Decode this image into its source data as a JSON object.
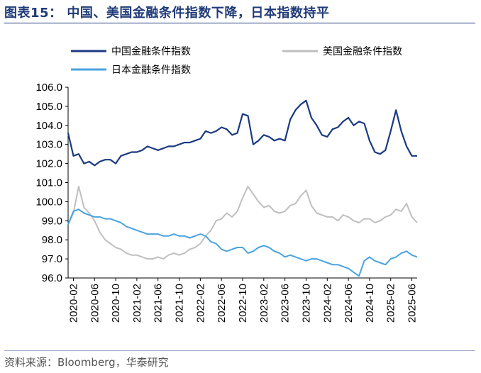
{
  "header": {
    "title": "图表15：  中国、美国金融条件指数下降，日本指数持平"
  },
  "footer": {
    "source": "资料来源：Bloomberg，华泰研究"
  },
  "colors": {
    "china": "#1b3a80",
    "us": "#bfbfbf",
    "japan": "#4aa3e0",
    "title": "#1f3a78"
  },
  "chart_data": {
    "type": "line",
    "title": "",
    "xlabel": "",
    "ylabel": "",
    "ylim": [
      96.0,
      106.0
    ],
    "yticks": [
      "106.0",
      "105.0",
      "104.0",
      "103.0",
      "102.0",
      "101.0",
      "100.0",
      "99.0",
      "98.0",
      "97.0",
      "96.0"
    ],
    "xticks": [
      "2020-02",
      "2020-06",
      "2020-10",
      "2021-02",
      "2021-06",
      "2021-10",
      "2022-02",
      "2022-06",
      "2022-10",
      "2023-02",
      "2023-06",
      "2023-10",
      "2024-02",
      "2024-06",
      "2024-10",
      "2025-02",
      "2025-06"
    ],
    "legend_position": "top",
    "grid": false,
    "series": [
      {
        "name": "中国金融条件指数",
        "color": "#1b3a80",
        "x": [
          "2020-01",
          "2020-02",
          "2020-03",
          "2020-04",
          "2020-05",
          "2020-06",
          "2020-07",
          "2020-08",
          "2020-09",
          "2020-10",
          "2020-11",
          "2020-12",
          "2021-01",
          "2021-02",
          "2021-03",
          "2021-04",
          "2021-05",
          "2021-06",
          "2021-07",
          "2021-08",
          "2021-09",
          "2021-10",
          "2021-11",
          "2021-12",
          "2022-01",
          "2022-02",
          "2022-03",
          "2022-04",
          "2022-05",
          "2022-06",
          "2022-07",
          "2022-08",
          "2022-09",
          "2022-10",
          "2022-11",
          "2022-12",
          "2023-01",
          "2023-02",
          "2023-03",
          "2023-04",
          "2023-05",
          "2023-06",
          "2023-07",
          "2023-08",
          "2023-09",
          "2023-10",
          "2023-11",
          "2023-12",
          "2024-01",
          "2024-02",
          "2024-03",
          "2024-04",
          "2024-05",
          "2024-06",
          "2024-07",
          "2024-08",
          "2024-09",
          "2024-10",
          "2024-11",
          "2024-12",
          "2025-01",
          "2025-02",
          "2025-03",
          "2025-04",
          "2025-05",
          "2025-06",
          "2025-07"
        ],
        "values": [
          103.6,
          102.4,
          102.5,
          102.0,
          102.1,
          101.9,
          102.1,
          102.2,
          102.2,
          102.0,
          102.4,
          102.5,
          102.6,
          102.6,
          102.7,
          102.9,
          102.8,
          102.7,
          102.8,
          102.9,
          102.9,
          103.0,
          103.1,
          103.1,
          103.2,
          103.3,
          103.7,
          103.6,
          103.7,
          103.9,
          103.8,
          103.5,
          103.6,
          104.6,
          104.5,
          103.0,
          103.2,
          103.5,
          103.4,
          103.2,
          103.3,
          103.2,
          104.3,
          104.8,
          105.1,
          105.3,
          104.4,
          104.0,
          103.5,
          103.4,
          103.8,
          103.9,
          104.2,
          104.4,
          104.0,
          104.2,
          104.1,
          103.2,
          102.6,
          102.5,
          102.7,
          103.7,
          104.8,
          103.7,
          102.9,
          102.4,
          102.4
        ]
      },
      {
        "name": "美国金融条件指数",
        "color": "#bfbfbf",
        "x": [
          "2020-01",
          "2020-02",
          "2020-03",
          "2020-04",
          "2020-05",
          "2020-06",
          "2020-07",
          "2020-08",
          "2020-09",
          "2020-10",
          "2020-11",
          "2020-12",
          "2021-01",
          "2021-02",
          "2021-03",
          "2021-04",
          "2021-05",
          "2021-06",
          "2021-07",
          "2021-08",
          "2021-09",
          "2021-10",
          "2021-11",
          "2021-12",
          "2022-01",
          "2022-02",
          "2022-03",
          "2022-04",
          "2022-05",
          "2022-06",
          "2022-07",
          "2022-08",
          "2022-09",
          "2022-10",
          "2022-11",
          "2022-12",
          "2023-01",
          "2023-02",
          "2023-03",
          "2023-04",
          "2023-05",
          "2023-06",
          "2023-07",
          "2023-08",
          "2023-09",
          "2023-10",
          "2023-11",
          "2023-12",
          "2024-01",
          "2024-02",
          "2024-03",
          "2024-04",
          "2024-05",
          "2024-06",
          "2024-07",
          "2024-08",
          "2024-09",
          "2024-10",
          "2024-11",
          "2024-12",
          "2025-01",
          "2025-02",
          "2025-03",
          "2025-04",
          "2025-05",
          "2025-06",
          "2025-07"
        ],
        "values": [
          98.8,
          99.4,
          100.8,
          99.7,
          99.4,
          99.0,
          98.4,
          98.0,
          97.8,
          97.6,
          97.5,
          97.3,
          97.2,
          97.2,
          97.1,
          97.0,
          97.0,
          97.1,
          97.0,
          97.2,
          97.3,
          97.2,
          97.3,
          97.5,
          97.6,
          97.8,
          98.2,
          98.5,
          99.0,
          99.1,
          99.4,
          99.2,
          99.5,
          100.2,
          100.8,
          100.4,
          100.0,
          99.7,
          99.8,
          99.5,
          99.4,
          99.5,
          99.8,
          99.9,
          100.3,
          100.6,
          99.8,
          99.4,
          99.3,
          99.2,
          99.2,
          99.0,
          99.3,
          99.2,
          99.0,
          98.9,
          99.1,
          99.1,
          98.9,
          99.0,
          99.2,
          99.3,
          99.6,
          99.5,
          99.9,
          99.2,
          98.9
        ]
      },
      {
        "name": "日本金融条件指数",
        "color": "#4aa3e0",
        "x": [
          "2020-01",
          "2020-02",
          "2020-03",
          "2020-04",
          "2020-05",
          "2020-06",
          "2020-07",
          "2020-08",
          "2020-09",
          "2020-10",
          "2020-11",
          "2020-12",
          "2021-01",
          "2021-02",
          "2021-03",
          "2021-04",
          "2021-05",
          "2021-06",
          "2021-07",
          "2021-08",
          "2021-09",
          "2021-10",
          "2021-11",
          "2021-12",
          "2022-01",
          "2022-02",
          "2022-03",
          "2022-04",
          "2022-05",
          "2022-06",
          "2022-07",
          "2022-08",
          "2022-09",
          "2022-10",
          "2022-11",
          "2022-12",
          "2023-01",
          "2023-02",
          "2023-03",
          "2023-04",
          "2023-05",
          "2023-06",
          "2023-07",
          "2023-08",
          "2023-09",
          "2023-10",
          "2023-11",
          "2023-12",
          "2024-01",
          "2024-02",
          "2024-03",
          "2024-04",
          "2024-05",
          "2024-06",
          "2024-07",
          "2024-08",
          "2024-09",
          "2024-10",
          "2024-11",
          "2024-12",
          "2025-01",
          "2025-02",
          "2025-03",
          "2025-04",
          "2025-05",
          "2025-06",
          "2025-07"
        ],
        "values": [
          98.8,
          99.5,
          99.6,
          99.4,
          99.3,
          99.2,
          99.2,
          99.1,
          99.1,
          99.0,
          98.9,
          98.7,
          98.6,
          98.5,
          98.4,
          98.3,
          98.3,
          98.3,
          98.2,
          98.2,
          98.3,
          98.2,
          98.2,
          98.1,
          98.2,
          98.3,
          98.2,
          97.9,
          97.8,
          97.5,
          97.4,
          97.5,
          97.6,
          97.6,
          97.3,
          97.4,
          97.6,
          97.7,
          97.6,
          97.4,
          97.3,
          97.1,
          97.2,
          97.1,
          97.0,
          96.9,
          97.0,
          97.0,
          96.9,
          96.8,
          96.7,
          96.7,
          96.6,
          96.5,
          96.3,
          96.1,
          96.9,
          97.1,
          96.9,
          96.8,
          96.7,
          97.0,
          97.1,
          97.3,
          97.4,
          97.2,
          97.1
        ]
      }
    ]
  }
}
